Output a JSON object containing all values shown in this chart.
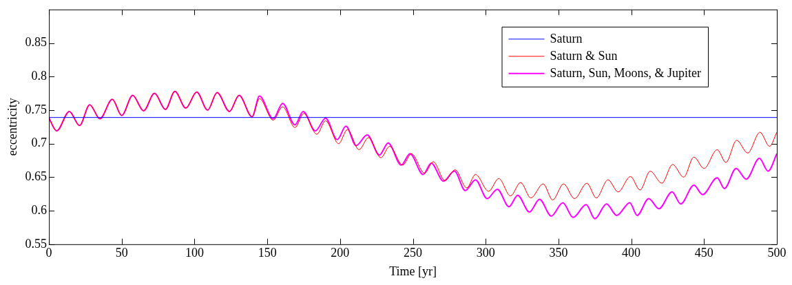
{
  "chart_data": {
    "type": "line",
    "xlabel": "Time [yr]",
    "ylabel": "eccentricity",
    "xlim": [
      0,
      500
    ],
    "xticks": [
      0,
      50,
      100,
      150,
      200,
      250,
      300,
      350,
      400,
      450,
      500
    ],
    "ylim": [
      0.55,
      0.9
    ],
    "yticks": [
      0.55,
      0.6,
      0.65,
      0.7,
      0.75,
      0.8,
      0.85
    ],
    "legend": "top right",
    "series": [
      {
        "name": "Saturn",
        "color": "#0000ff",
        "x": [
          0,
          500
        ],
        "values": [
          0.739,
          0.739
        ]
      },
      {
        "name": "Saturn & Sun",
        "color": "#ff0000",
        "x": [
          0,
          5.3,
          14,
          21,
          28,
          35,
          43.5,
          50,
          57.5,
          65,
          72.5,
          80,
          86.5,
          94,
          101.5,
          109,
          115.5,
          124,
          130.6,
          139.5,
          144.6,
          154,
          160.5,
          169,
          175,
          184,
          190,
          199,
          205,
          213,
          219.5,
          228,
          234,
          243,
          249,
          258,
          264,
          272,
          279,
          287,
          293,
          302,
          309,
          317,
          324,
          331,
          339.5,
          346,
          353.5,
          361,
          369.5,
          376,
          384,
          391,
          399.4,
          406,
          413,
          421,
          428.4,
          436,
          443,
          450,
          459,
          465,
          472.4,
          480,
          488.4,
          495,
          500
        ],
        "values": [
          0.738,
          0.719,
          0.748,
          0.727,
          0.758,
          0.737,
          0.766,
          0.742,
          0.772,
          0.749,
          0.775,
          0.751,
          0.778,
          0.753,
          0.777,
          0.75,
          0.776,
          0.748,
          0.772,
          0.74,
          0.767,
          0.735,
          0.755,
          0.724,
          0.745,
          0.714,
          0.734,
          0.7,
          0.721,
          0.691,
          0.709,
          0.679,
          0.696,
          0.668,
          0.685,
          0.656,
          0.673,
          0.645,
          0.661,
          0.634,
          0.654,
          0.629,
          0.648,
          0.622,
          0.642,
          0.619,
          0.64,
          0.616,
          0.64,
          0.618,
          0.641,
          0.619,
          0.646,
          0.628,
          0.651,
          0.631,
          0.659,
          0.641,
          0.669,
          0.65,
          0.68,
          0.663,
          0.691,
          0.672,
          0.705,
          0.686,
          0.717,
          0.696,
          0.717
        ]
      },
      {
        "name": "Saturn, Sun, Moons, & Jupiter",
        "color": "#ff00ff",
        "x": [
          0,
          5.3,
          14,
          21,
          28,
          35,
          43.5,
          50,
          57.5,
          65,
          72.5,
          80,
          86.5,
          94,
          101.5,
          109,
          115.5,
          124,
          130.6,
          139.5,
          144.6,
          154,
          160.5,
          169,
          174.6,
          183,
          190,
          198,
          204,
          211,
          218.6,
          227,
          233,
          242,
          248,
          257,
          262.6,
          271,
          278.5,
          286,
          293,
          301,
          308,
          316,
          322,
          330,
          337,
          345,
          353,
          360,
          369,
          375,
          383,
          390,
          399,
          404,
          412,
          419,
          428,
          434,
          443,
          449,
          459,
          464,
          472,
          479,
          488,
          494,
          500
        ],
        "values": [
          0.738,
          0.719,
          0.748,
          0.727,
          0.758,
          0.737,
          0.766,
          0.742,
          0.772,
          0.749,
          0.775,
          0.751,
          0.778,
          0.753,
          0.777,
          0.75,
          0.776,
          0.748,
          0.772,
          0.74,
          0.771,
          0.737,
          0.76,
          0.728,
          0.748,
          0.719,
          0.738,
          0.706,
          0.726,
          0.697,
          0.713,
          0.683,
          0.701,
          0.668,
          0.685,
          0.654,
          0.671,
          0.644,
          0.659,
          0.63,
          0.646,
          0.618,
          0.632,
          0.606,
          0.623,
          0.598,
          0.617,
          0.592,
          0.612,
          0.59,
          0.609,
          0.588,
          0.61,
          0.593,
          0.612,
          0.593,
          0.618,
          0.603,
          0.628,
          0.61,
          0.638,
          0.624,
          0.649,
          0.633,
          0.663,
          0.647,
          0.678,
          0.659,
          0.685
        ]
      }
    ]
  }
}
